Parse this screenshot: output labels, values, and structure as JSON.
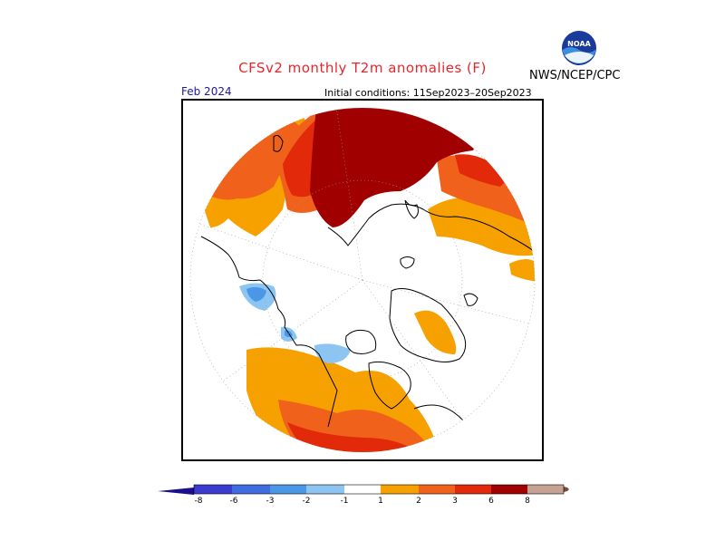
{
  "header": {
    "title": "CFSv2 monthly T2m anomalies (F)",
    "agency": "NWS/NCEP/CPC",
    "logo_text": "NOAA"
  },
  "map": {
    "valid_month": "Feb 2024",
    "initial_conditions": "Initial conditions: 11Sep2023–20Sep2023",
    "projection": "north-polar-stereographic"
  },
  "colorbar": {
    "tick_labels": [
      "-8",
      "-6",
      "-3",
      "-2",
      "-1",
      "1",
      "2",
      "3",
      "6",
      "8"
    ],
    "colors": {
      "below_min": "#1b0e8c",
      "neg8_neg6": "#3b3bd0",
      "neg6_neg3": "#3f6de0",
      "neg3_neg2": "#4a97e8",
      "neg2_neg1": "#8cc4f2",
      "neutral": "#ffffff",
      "pos1_pos2": "#f7a100",
      "pos2_pos3": "#f0621c",
      "pos3_pos6": "#e2290a",
      "pos6_pos8": "#a00000",
      "pos8_max": "#c6a294",
      "above_max": "#7a4a3a"
    }
  },
  "colors": {
    "title": "#e8262c",
    "valid_month": "#1a1aa0"
  }
}
